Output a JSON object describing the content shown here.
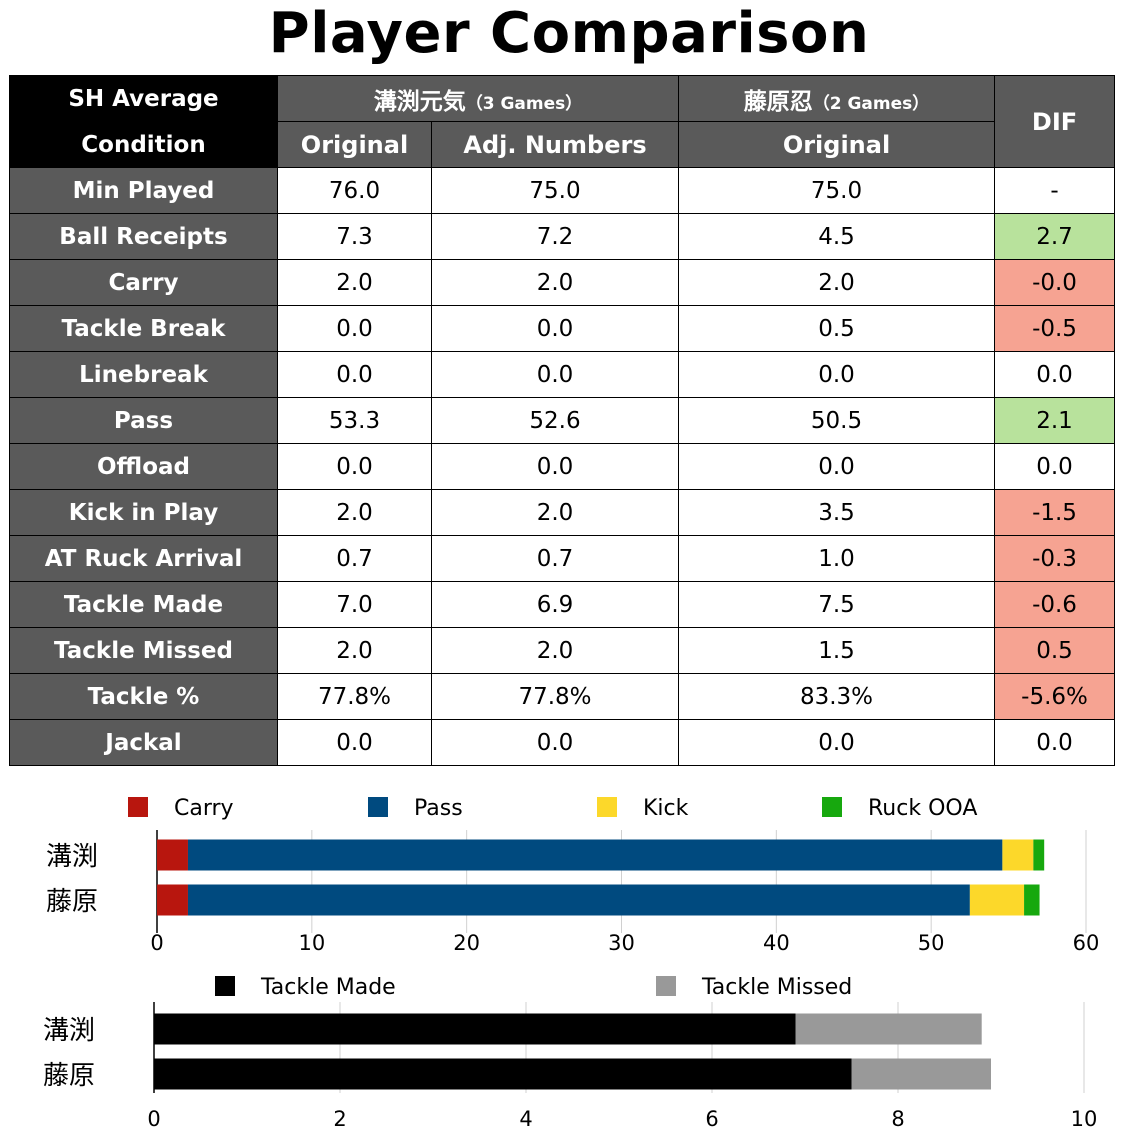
{
  "title": "Player Comparison",
  "table": {
    "corner_line1": "SH Average",
    "corner_line2": "Condition",
    "player1_name": "溝渕元気",
    "player1_games": "（3 Games）",
    "player2_name": "藤原忍",
    "player2_games": "（2 Games）",
    "dif_header": "DIF",
    "col_original": "Original",
    "col_adjusted": "Adj. Numbers",
    "col_original2": "Original",
    "rows": [
      {
        "label": "Min Played",
        "p1_orig": "76.0",
        "p1_adj": "75.0",
        "p2_orig": "75.0",
        "dif": "-",
        "dif_status": "neutral"
      },
      {
        "label": "Ball Receipts",
        "p1_orig": "7.3",
        "p1_adj": "7.2",
        "p2_orig": "4.5",
        "dif": "2.7",
        "dif_status": "positive"
      },
      {
        "label": "Carry",
        "p1_orig": "2.0",
        "p1_adj": "2.0",
        "p2_orig": "2.0",
        "dif": "-0.0",
        "dif_status": "negative"
      },
      {
        "label": "Tackle Break",
        "p1_orig": "0.0",
        "p1_adj": "0.0",
        "p2_orig": "0.5",
        "dif": "-0.5",
        "dif_status": "negative"
      },
      {
        "label": "Linebreak",
        "p1_orig": "0.0",
        "p1_adj": "0.0",
        "p2_orig": "0.0",
        "dif": "0.0",
        "dif_status": "neutral"
      },
      {
        "label": "Pass",
        "p1_orig": "53.3",
        "p1_adj": "52.6",
        "p2_orig": "50.5",
        "dif": "2.1",
        "dif_status": "positive"
      },
      {
        "label": "Offload",
        "p1_orig": "0.0",
        "p1_adj": "0.0",
        "p2_orig": "0.0",
        "dif": "0.0",
        "dif_status": "neutral"
      },
      {
        "label": "Kick in Play",
        "p1_orig": "2.0",
        "p1_adj": "2.0",
        "p2_orig": "3.5",
        "dif": "-1.5",
        "dif_status": "negative"
      },
      {
        "label": "AT Ruck Arrival",
        "p1_orig": "0.7",
        "p1_adj": "0.7",
        "p2_orig": "1.0",
        "dif": "-0.3",
        "dif_status": "negative"
      },
      {
        "label": "Tackle Made",
        "p1_orig": "7.0",
        "p1_adj": "6.9",
        "p2_orig": "7.5",
        "dif": "-0.6",
        "dif_status": "negative"
      },
      {
        "label": "Tackle Missed",
        "p1_orig": "2.0",
        "p1_adj": "2.0",
        "p2_orig": "1.5",
        "dif": "0.5",
        "dif_status": "negative"
      },
      {
        "label": "Tackle %",
        "p1_orig": "77.8%",
        "p1_adj": "77.8%",
        "p2_orig": "83.3%",
        "dif": "-5.6%",
        "dif_status": "negative"
      },
      {
        "label": "Jackal",
        "p1_orig": "0.0",
        "p1_adj": "0.0",
        "p2_orig": "0.0",
        "dif": "0.0",
        "dif_status": "neutral"
      }
    ],
    "colors": {
      "positive": "#b8e29c",
      "negative": "#f6a392",
      "neutral": "#ffffff"
    }
  },
  "chart_data": [
    {
      "type": "bar",
      "orientation": "horizontal",
      "stacked": true,
      "categories": [
        "溝渕",
        "藤原"
      ],
      "series": [
        {
          "name": "Carry",
          "color": "#b8160e",
          "values": [
            2.0,
            2.0
          ]
        },
        {
          "name": "Pass",
          "color": "#004a7f",
          "values": [
            52.6,
            50.5
          ]
        },
        {
          "name": "Kick",
          "color": "#fcd82a",
          "values": [
            2.0,
            3.5
          ]
        },
        {
          "name": "Ruck OOA",
          "color": "#17a80e",
          "values": [
            0.7,
            1.0
          ]
        }
      ],
      "xlim": [
        0,
        60
      ],
      "xticks": [
        0,
        10,
        20,
        30,
        40,
        50,
        60
      ],
      "grid": true,
      "legend_position": "top"
    },
    {
      "type": "bar",
      "orientation": "horizontal",
      "stacked": true,
      "categories": [
        "溝渕",
        "藤原"
      ],
      "series": [
        {
          "name": "Tackle Made",
          "color": "#000000",
          "values": [
            6.9,
            7.5
          ]
        },
        {
          "name": "Tackle Missed",
          "color": "#999999",
          "values": [
            2.0,
            1.5
          ]
        }
      ],
      "xlim": [
        0,
        10
      ],
      "xticks": [
        0,
        2,
        4,
        6,
        8,
        10
      ],
      "grid": true,
      "legend_position": "top"
    }
  ]
}
